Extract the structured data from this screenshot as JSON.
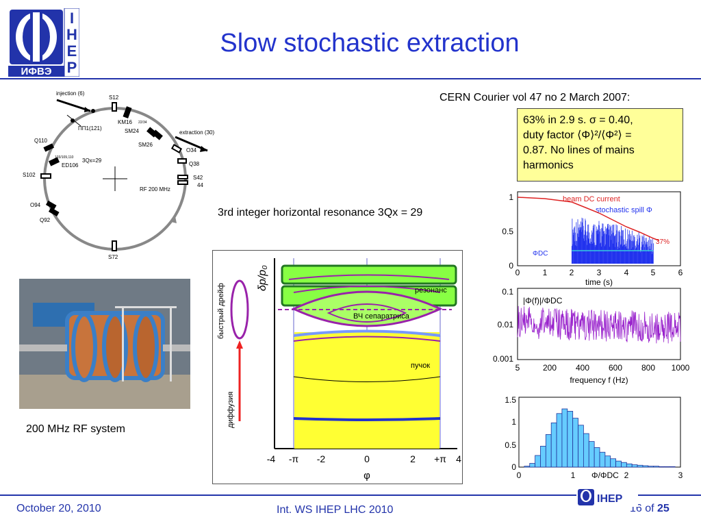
{
  "slide": {
    "title": "Slow stochastic extraction",
    "logo_letters": [
      "I",
      "H",
      "E",
      "P"
    ],
    "logo_cyrillic": "ИФВЭ",
    "cern_ref": "CERN Courier vol 47 no 2 March 2007:",
    "note_lines": [
      "63% in 2.9 s. σ = 0.40,",
      "duty factor ⟨Φ⟩²/⟨Φ²⟩ =",
      "0.87. No lines of mains",
      "harmonics"
    ],
    "resonance_label": "3rd integer horizontal resonance 3Qx = 29",
    "rf_caption": "200 MHz RF system",
    "rf_photo_icon": "rf-cavity-photo",
    "footer": {
      "date": "October 20, 2010",
      "event": "Int. WS IHEP LHC 2010",
      "page_prefix": "16 of ",
      "page_total": "25",
      "logo_text": "IHEP"
    }
  },
  "ring": {
    "labels": {
      "injection": "injection (6)",
      "s12": "S12",
      "km16": "KM16",
      "pp": "ПП1(121)",
      "sm24": "SM24",
      "small1": "22/34",
      "extraction": "extraction (30)",
      "sm26": "SM26",
      "o34": "O34",
      "q110": "Q110",
      "small2": "103/109,110",
      "ed106": "ED106",
      "qx": "3Qx=29",
      "q38": "Q38",
      "s102": "S102",
      "s42": "S42",
      "n44": "44",
      "rf": "RF 200 MHz",
      "o94": "O94",
      "q92": "Q92",
      "s72": "S72"
    }
  },
  "phase": {
    "ylabel": "δp/p₀",
    "xlabel": "φ",
    "xticks": [
      "-4",
      "-π",
      "-2",
      "0",
      "2",
      "+π",
      "4"
    ],
    "resonance": "резонанс",
    "separatrix": "ВЧ сепаратриса",
    "bunch": "пучок",
    "fast_drift": "быстрый дрейф",
    "diffusion": "диффузия"
  },
  "chart_data": [
    {
      "type": "line",
      "title": "",
      "xlabel": "time (s)",
      "ylabel": "",
      "xlim": [
        0,
        6
      ],
      "ylim": [
        0,
        1
      ],
      "xticks": [
        "0",
        "1",
        "2",
        "3",
        "4",
        "5",
        "6"
      ],
      "yticks": [
        "0",
        "0.5",
        "1"
      ],
      "annotations": [
        "beam DC current",
        "stochastic spill Φ",
        "37%",
        "ΦDC"
      ],
      "series": [
        {
          "name": "beam DC current",
          "x": [
            0,
            1,
            2,
            2.5,
            3,
            3.5,
            4,
            4.5,
            5,
            5.2
          ],
          "y": [
            1.0,
            0.98,
            0.93,
            0.85,
            0.77,
            0.67,
            0.57,
            0.49,
            0.4,
            0.37
          ]
        },
        {
          "name": "stochastic spill Φ",
          "x": [
            2,
            3,
            4,
            5
          ],
          "y": [
            0.38,
            0.35,
            0.3,
            0.22
          ]
        }
      ],
      "colors": {
        "dc": "#dd2222",
        "spill": "#2233ee"
      }
    },
    {
      "type": "line",
      "title": "|Φ(f)|/ΦDC",
      "xlabel": "frequency f (Hz)",
      "ylabel": "",
      "xlim": [
        5,
        1000
      ],
      "ylim": [
        0.001,
        0.1
      ],
      "log_y": true,
      "xticks": [
        "5",
        "200",
        "400",
        "600",
        "800",
        "1000"
      ],
      "yticks": [
        "0.001",
        "0.01",
        "0.1"
      ],
      "series": [
        {
          "name": "",
          "x": [
            5,
            200,
            400,
            600,
            800,
            1000
          ],
          "y": [
            0.012,
            0.01,
            0.009,
            0.009,
            0.008,
            0.008
          ]
        }
      ],
      "colors": {
        "line": "#9922cc"
      }
    },
    {
      "type": "bar",
      "title": "",
      "xlabel": "Φ/ΦDC",
      "ylabel": "",
      "xlim": [
        0,
        3
      ],
      "ylim": [
        0,
        1.5
      ],
      "xticks": [
        "0",
        "1",
        "2",
        "3"
      ],
      "yticks": [
        "0",
        "0.5",
        "1",
        "1.5"
      ],
      "bins_x": [
        0.15,
        0.25,
        0.35,
        0.45,
        0.55,
        0.65,
        0.75,
        0.85,
        0.95,
        1.05,
        1.15,
        1.25,
        1.35,
        1.45,
        1.55,
        1.65,
        1.75,
        1.85,
        1.95,
        2.05,
        2.15,
        2.25,
        2.35,
        2.45,
        2.55,
        2.65,
        2.75,
        2.85
      ],
      "values": [
        0.02,
        0.08,
        0.25,
        0.45,
        0.7,
        0.95,
        1.15,
        1.25,
        1.2,
        1.05,
        0.9,
        0.72,
        0.55,
        0.42,
        0.32,
        0.24,
        0.18,
        0.13,
        0.1,
        0.07,
        0.05,
        0.04,
        0.03,
        0.02,
        0.02,
        0.01,
        0.01,
        0.01
      ],
      "colors": {
        "bar": "#66ccff",
        "edge": "#223399"
      }
    }
  ]
}
